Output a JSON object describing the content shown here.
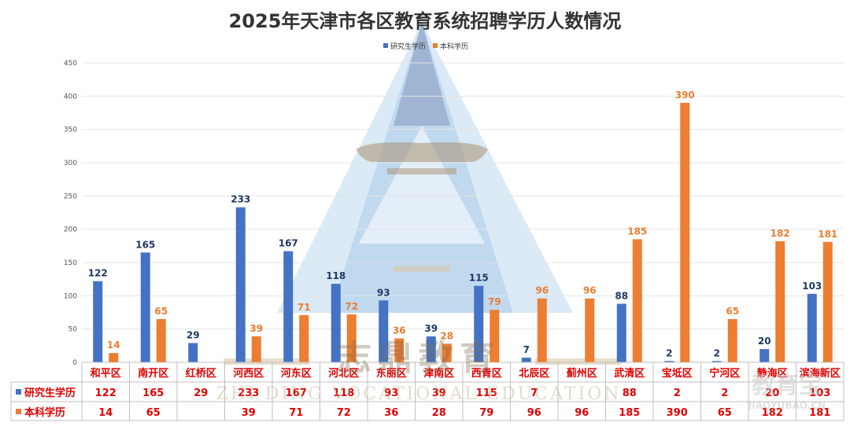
{
  "chart_data": {
    "type": "bar",
    "title": "2025年天津市各区教育系统招聘学历人数情况",
    "categories": [
      "和平区",
      "南开区",
      "红桥区",
      "河西区",
      "河东区",
      "河北区",
      "东丽区",
      "津南区",
      "西青区",
      "北辰区",
      "蓟州区",
      "武清区",
      "宝坻区",
      "宁河区",
      "静海区",
      "滨海新区"
    ],
    "series": [
      {
        "name": "研究生学历",
        "color": "#4472c4",
        "values": [
          122,
          165,
          29,
          233,
          167,
          118,
          93,
          39,
          115,
          7,
          null,
          88,
          2,
          2,
          20,
          103
        ]
      },
      {
        "name": "本科学历",
        "color": "#ed7d31",
        "values": [
          14,
          65,
          null,
          39,
          71,
          72,
          36,
          28,
          79,
          96,
          96,
          185,
          390,
          65,
          182,
          181
        ]
      }
    ],
    "ylim": [
      0,
      450
    ],
    "yticks": [
      0,
      50,
      100,
      150,
      200,
      250,
      300,
      350,
      400,
      450
    ],
    "grid": true,
    "legend_position": "top-center",
    "data_table": true
  },
  "watermark": {
    "brand_cn": "志鼎教育",
    "brand_en": "ZHI DING  VOCATIONAL  EDUCATION",
    "site_cn": "教育宝",
    "site_url": "JIAOYUBAO.CN"
  }
}
